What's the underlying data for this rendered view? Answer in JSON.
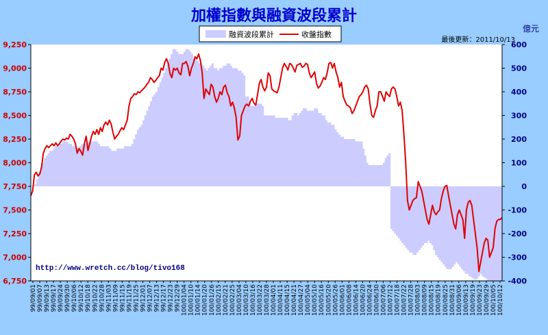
{
  "chart_data": {
    "type": "line",
    "title": "加權指數與融資波段累計",
    "right_axis_unit": "億元",
    "updated": "最後更新：2011/10/13",
    "credit": "http://www.wretch.cc/blog/tivo168",
    "legend": [
      "融資波段累計",
      "收盤指數"
    ],
    "legend_placement": "top-center",
    "grid": false,
    "colors": {
      "background": "#99CCFF",
      "plot": "#FFFFFF",
      "title": "#0000CC",
      "area": "#CCCCFF",
      "line": "#DD0000",
      "left_axis_text": "#CC0000",
      "right_axis_text": "#000080"
    },
    "left_axis": {
      "ylim": [
        6750,
        9250
      ],
      "ticks": [
        9250,
        9000,
        8750,
        8500,
        8250,
        8000,
        7750,
        7500,
        7250,
        7000,
        6750
      ],
      "tick_labels": [
        "9,250",
        "9,000",
        "8,750",
        "8,500",
        "8,250",
        "8,000",
        "7,750",
        "7,500",
        "7,250",
        "7,000",
        "6,750"
      ]
    },
    "right_axis": {
      "ylim": [
        -400,
        600
      ],
      "ticks": [
        600,
        500,
        400,
        300,
        200,
        100,
        0,
        -100,
        -200,
        -300,
        -400
      ],
      "tick_labels": [
        "600",
        "500",
        "400",
        "300",
        "200",
        "100",
        "0",
        "-100",
        "-200",
        "-300",
        "-400"
      ]
    },
    "x_labels": [
      "99/09/01",
      "99/09/07",
      "99/09/13",
      "99/09/17",
      "99/09/24",
      "99/09/30",
      "99/10/06",
      "99/10/12",
      "99/10/18",
      "99/10/22",
      "99/10/28",
      "99/11/03",
      "99/11/09",
      "99/11/15",
      "99/11/19",
      "99/11/25",
      "99/12/01",
      "99/12/07",
      "99/12/13",
      "99/12/17",
      "99/12/23",
      "99/12/29",
      "100/01/04",
      "100/01/10",
      "100/01/14",
      "100/01/20",
      "100/01/26",
      "100/02/15",
      "100/02/21",
      "100/02/25",
      "100/03/04",
      "100/03/10",
      "100/03/16",
      "100/03/22",
      "100/03/28",
      "100/04/01",
      "100/04/11",
      "100/04/15",
      "100/04/21",
      "100/04/27",
      "100/05/04",
      "100/05/10",
      "100/05/16",
      "100/05/20",
      "100/05/26",
      "100/06/01",
      "100/06/08",
      "100/06/14",
      "100/06/20",
      "100/06/24",
      "100/06/30",
      "100/07/06",
      "100/07/12",
      "100/07/18",
      "100/07/22",
      "100/07/28",
      "100/08/03",
      "100/08/09",
      "100/08/15",
      "100/08/19",
      "100/08/25",
      "100/08/31",
      "100/09/06",
      "100/09/13",
      "100/09/19",
      "100/09/23",
      "100/09/29",
      "100/10/05",
      "100/10/12"
    ],
    "series": [
      {
        "name": "收盤指數",
        "values": [
          7650,
          7700,
          7870,
          7900,
          7860,
          7880,
          7950,
          8100,
          8150,
          8180,
          8160,
          8180,
          8200,
          8180,
          8210,
          8180,
          8200,
          8230,
          8250,
          8240,
          8260,
          8250,
          8300,
          8280,
          8250,
          8200,
          8100,
          8150,
          8120,
          8080,
          8200,
          8280,
          8130,
          8200,
          8280,
          8330,
          8300,
          8350,
          8300,
          8370,
          8330,
          8400,
          8430,
          8400,
          8450,
          8410,
          8320,
          8250,
          8280,
          8300,
          8340,
          8370,
          8350,
          8400,
          8450,
          8600,
          8680,
          8700,
          8730,
          8720,
          8750,
          8740,
          8760,
          8780,
          8800,
          8830,
          8850,
          8900,
          8880,
          8850,
          8870,
          8900,
          8920,
          9000,
          8980,
          9060,
          9100,
          9050,
          8940,
          8900,
          9000,
          8980,
          9000,
          8950,
          8930,
          9050,
          9050,
          9070,
          9020,
          8920,
          9000,
          9050,
          9120,
          9100,
          9150,
          9080,
          8950,
          8680,
          8780,
          8750,
          8720,
          8830,
          8800,
          8700,
          8640,
          8680,
          8750,
          8720,
          8800,
          8820,
          8740,
          8700,
          8600,
          8640,
          8580,
          8480,
          8240,
          8280,
          8500,
          8550,
          8600,
          8620,
          8600,
          8650,
          8680,
          8630,
          8610,
          8720,
          8840,
          8880,
          8800,
          8760,
          8800,
          8950,
          8920,
          8780,
          8760,
          8750,
          8740,
          8800,
          8900,
          9000,
          9050,
          9020,
          8980,
          9050,
          9040,
          9000,
          8960,
          9030,
          9040,
          9050,
          9010,
          9020,
          9050,
          9040,
          8950,
          8900,
          8930,
          8960,
          8840,
          8790,
          8810,
          8850,
          8900,
          8880,
          8950,
          9050,
          9060,
          9000,
          9050,
          8960,
          8900,
          8800,
          8850,
          8700,
          8650,
          8610,
          8600,
          8580,
          8520,
          8550,
          8600,
          8650,
          8700,
          8720,
          8750,
          8800,
          8820,
          8780,
          8620,
          8500,
          8480,
          8550,
          8600,
          8750,
          8750,
          8700,
          8650,
          8750,
          8720,
          8700,
          8780,
          8800,
          8780,
          8700,
          8600,
          8640,
          8550,
          8300,
          8000,
          7600,
          7500,
          7550,
          7600,
          7620,
          7630,
          7800,
          7750,
          7700,
          7600,
          7500,
          7400,
          7350,
          7450,
          7550,
          7480,
          7450,
          7480,
          7500,
          7620,
          7700,
          7750,
          7760,
          7650,
          7550,
          7450,
          7350,
          7300,
          7450,
          7500,
          7450,
          7400,
          7200,
          7500,
          7580,
          7600,
          7550,
          7400,
          7250,
          7100,
          6850,
          6950,
          7050,
          7150,
          7200,
          7180,
          7000,
          7050,
          7100,
          7300,
          7380,
          7400,
          7400,
          7420
        ]
      },
      {
        "name": "融資波段累計",
        "values": [
          0,
          5,
          10,
          30,
          60,
          80,
          100,
          120,
          130,
          140,
          150,
          150,
          160,
          170,
          170,
          180,
          180,
          190,
          190,
          190,
          180,
          180,
          170,
          170,
          160,
          160,
          170,
          180,
          180,
          180,
          190,
          190,
          190,
          190,
          190,
          190,
          180,
          170,
          170,
          170,
          170,
          170,
          160,
          150,
          150,
          150,
          160,
          160,
          160,
          160,
          170,
          170,
          170,
          170,
          180,
          200,
          220,
          240,
          250,
          260,
          280,
          300,
          320,
          340,
          360,
          380,
          390,
          400,
          420,
          440,
          460,
          480,
          500,
          520,
          540,
          560,
          580,
          580,
          570,
          560,
          560,
          560,
          570,
          580,
          580,
          570,
          560,
          540,
          540,
          530,
          520,
          520,
          510,
          500,
          490,
          500,
          510,
          520,
          500,
          500,
          490,
          500,
          500,
          510,
          510,
          520,
          520,
          510,
          500,
          500,
          500,
          490,
          490,
          480,
          470,
          380,
          380,
          360,
          340,
          340,
          350,
          350,
          350,
          350,
          340,
          300,
          300,
          300,
          300,
          300,
          300,
          290,
          290,
          290,
          290,
          290,
          290,
          290,
          280,
          280,
          300,
          310,
          310,
          300,
          310,
          320,
          330,
          330,
          320,
          320,
          320,
          320,
          330,
          330,
          310,
          310,
          300,
          300,
          280,
          270,
          270,
          260,
          260,
          240,
          230,
          220,
          210,
          210,
          200,
          200,
          200,
          200,
          200,
          200,
          190,
          190,
          190,
          190,
          160,
          130,
          100,
          90,
          90,
          90,
          90,
          90,
          90,
          90,
          90,
          100,
          120,
          130,
          140,
          -180,
          -190,
          -200,
          -210,
          -220,
          -230,
          -240,
          -250,
          -260,
          -270,
          -280,
          -280,
          -290,
          -290,
          -280,
          -270,
          -260,
          -250,
          -240,
          -240,
          -230,
          -240,
          -250,
          -270,
          -290,
          -300,
          -310,
          -320,
          -330,
          -340,
          -350,
          -350,
          -350,
          -340,
          -330,
          -320,
          -330,
          -340,
          -350,
          -360,
          -370,
          -370,
          -380,
          -385,
          -390,
          -395,
          -390,
          -380,
          -370,
          -380,
          -385,
          -390,
          -400,
          -400,
          -400,
          -400,
          -400,
          -400,
          -400,
          -400
        ]
      }
    ]
  }
}
